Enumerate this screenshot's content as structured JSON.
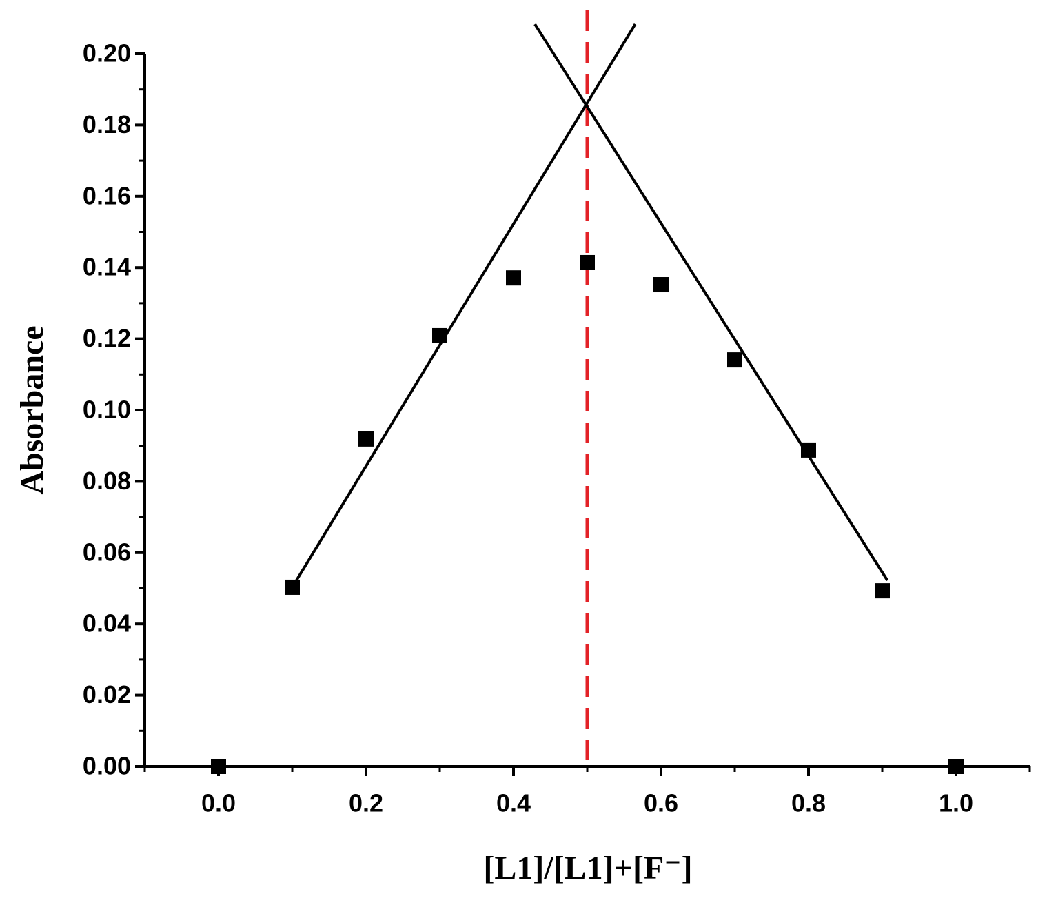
{
  "chart_data": {
    "type": "scatter",
    "x_label": "[L1]/[L1]+[F⁻]",
    "y_label": "Absorbance",
    "xlim": [
      -0.1,
      1.1
    ],
    "ylim": [
      0,
      0.2
    ],
    "xticks": [
      {
        "value": 0,
        "label": "0.0"
      },
      0.2,
      0.4,
      0.6,
      0.8,
      {
        "value": 1,
        "label": "1.0"
      }
    ],
    "yticks": [
      {
        "value": 0,
        "label": "0.00"
      },
      0.02,
      0.04,
      0.06,
      0.08,
      {
        "value": 0.1,
        "label": "0.10"
      },
      0.12,
      0.14,
      0.16,
      0.18,
      {
        "value": 0.2,
        "label": "0.20"
      }
    ],
    "xminorticks": [
      -0.1,
      0.1,
      0.3,
      0.5,
      0.7,
      0.9,
      1.1
    ],
    "yminorticks": [
      0.01,
      0.03,
      0.05,
      0.07,
      0.09,
      0.11,
      0.13,
      0.15,
      0.17,
      0.19
    ],
    "series": [
      {
        "type": "scatter",
        "color": "#000000",
        "x": [
          0,
          0.1,
          0.2,
          0.3,
          0.4,
          0.5,
          0.6,
          0.7,
          0.8,
          0.9,
          1
        ],
        "values": [
          0,
          0.0503,
          0.0919,
          0.1209,
          0.1371,
          0.1414,
          0.1352,
          0.1141,
          0.0888,
          0.0493,
          0
        ]
      },
      {
        "type": "line",
        "color": "#000000",
        "x": [
          0.1,
          0.565
        ],
        "values": [
          0.0503,
          0.2083
        ]
      },
      {
        "type": "line",
        "color": "#000000",
        "x": [
          0.429,
          0.907
        ],
        "values": [
          0.2083,
          0.0522
        ]
      }
    ],
    "reference_line": {
      "x": 0.5,
      "color": "#e32227",
      "dashed": true
    }
  }
}
